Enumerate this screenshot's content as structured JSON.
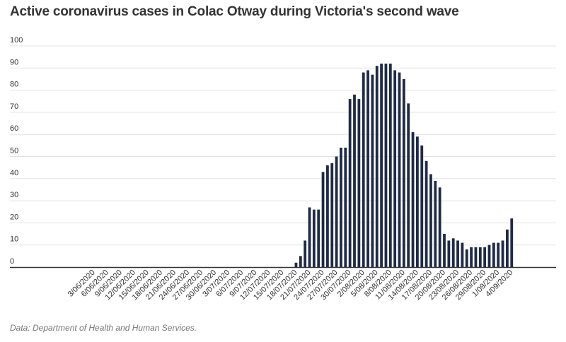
{
  "title": "Active coronavirus cases in Colac Otway during Victoria's second wave",
  "source": "Data: Department of Health and Human Services.",
  "colors": {
    "bar": "#1f2a44",
    "grid": "#e3e3e3",
    "axis": "#333333",
    "text": "#333333"
  },
  "chart_data": {
    "type": "bar",
    "title": "Active coronavirus cases in Colac Otway during Victoria's second wave",
    "xlabel": "",
    "ylabel": "",
    "ylim": [
      0,
      100
    ],
    "yticks": [
      0,
      10,
      20,
      30,
      40,
      50,
      60,
      70,
      80,
      90,
      100
    ],
    "grid": true,
    "start_date": "2020-06-01",
    "end_date": "2020-09-04",
    "xtick_labels": [
      "3/06/2020",
      "6/06/2020",
      "9/06/2020",
      "12/06/2020",
      "15/06/2020",
      "18/06/2020",
      "21/06/2020",
      "24/06/2020",
      "27/06/2020",
      "30/06/2020",
      "3/07/2020",
      "6/07/2020",
      "9/07/2020",
      "12/07/2020",
      "15/07/2020",
      "18/07/2020",
      "21/07/2020",
      "24/07/2020",
      "27/07/2020",
      "30/07/2020",
      "2/08/2020",
      "5/08/2020",
      "8/08/2020",
      "11/08/2020",
      "14/08/2020",
      "17/08/2020",
      "20/08/2020",
      "23/08/2020",
      "26/08/2020",
      "29/08/2020",
      "1/09/2020",
      "4/09/2020"
    ],
    "values": [
      0,
      0,
      0,
      0,
      0,
      0,
      0,
      0,
      0,
      0,
      0,
      0,
      0,
      0,
      0,
      0,
      0,
      0,
      0,
      0,
      0,
      0,
      0,
      0,
      0,
      0,
      0,
      0,
      0,
      0,
      0,
      0,
      0,
      0,
      0,
      0,
      0,
      0,
      0,
      0,
      0,
      0,
      0,
      0,
      0,
      0,
      0,
      2,
      5,
      12,
      27,
      26,
      26,
      43,
      46,
      47,
      50,
      54,
      54,
      76,
      78,
      76,
      88,
      89,
      87,
      91,
      92,
      92,
      92,
      89,
      88,
      85,
      74,
      61,
      59,
      55,
      48,
      42,
      39,
      36,
      15,
      12,
      13,
      12,
      11,
      8,
      9,
      9,
      9,
      9,
      10,
      11,
      11,
      12,
      17,
      22
    ]
  }
}
